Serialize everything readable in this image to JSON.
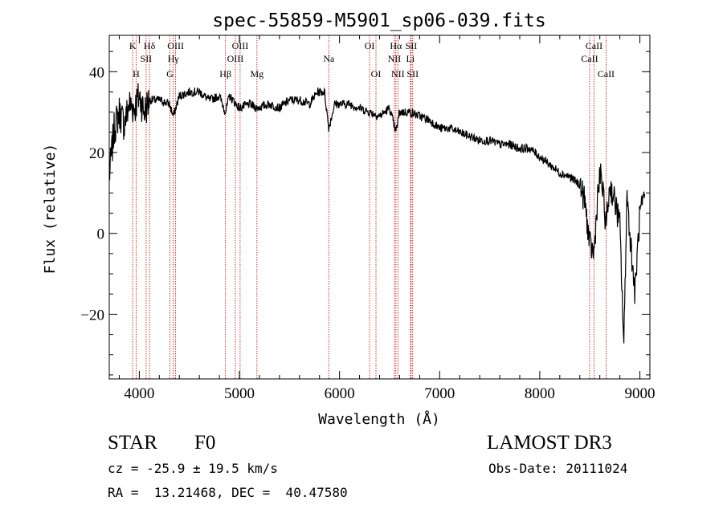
{
  "chart_data": {
    "type": "line",
    "title": "spec-55859-M5901_sp06-039.fits",
    "xlabel": "Wavelength (Å)",
    "ylabel": "Flux (relative)",
    "xlim": [
      3700,
      9100
    ],
    "ylim": [
      -36,
      49
    ],
    "xticks": [
      4000,
      5000,
      6000,
      7000,
      8000,
      9000
    ],
    "yticks": [
      -20,
      0,
      20,
      40
    ],
    "grid": false,
    "series": [
      {
        "name": "spectrum",
        "x": [
          3700,
          3750,
          3800,
          3850,
          3900,
          3950,
          4000,
          4050,
          4100,
          4200,
          4300,
          4340,
          4400,
          4500,
          4600,
          4700,
          4800,
          4861,
          4900,
          5000,
          5100,
          5175,
          5300,
          5400,
          5500,
          5600,
          5700,
          5780,
          5850,
          5893,
          5950,
          6100,
          6200,
          6300,
          6400,
          6500,
          6563,
          6600,
          6700,
          6800,
          6900,
          7000,
          7100,
          7200,
          7300,
          7400,
          7500,
          7600,
          7700,
          7800,
          7900,
          8000,
          8050,
          8100,
          8200,
          8300,
          8400,
          8450,
          8500,
          8542,
          8580,
          8610,
          8662,
          8700,
          8750,
          8800,
          8840,
          8870,
          8900,
          8950,
          9000,
          9050
        ],
        "y": [
          14,
          26,
          30,
          27,
          32,
          31,
          34,
          30,
          33,
          33,
          32,
          29,
          34,
          35,
          35,
          33,
          34,
          30,
          34,
          31,
          32,
          31,
          32,
          31,
          33,
          33,
          32,
          35,
          35,
          26,
          32,
          32,
          31,
          30,
          29,
          31,
          25,
          30,
          30,
          29,
          28,
          26,
          26,
          25,
          24,
          23,
          23,
          22,
          22,
          21,
          21,
          19,
          18,
          17,
          15,
          14,
          12,
          8,
          -3,
          -5,
          10,
          15,
          2,
          12,
          8,
          2,
          -28,
          10,
          0,
          -15,
          5,
          8
        ]
      }
    ],
    "annotation_lines": [
      {
        "label": "Hα",
        "x": 6563,
        "row": 1
      },
      {
        "label": "Hβ",
        "x": 4861,
        "row": 3
      },
      {
        "label": "Hγ",
        "x": 4340,
        "row": 2
      },
      {
        "label": "Hδ",
        "x": 4102,
        "row": 1
      },
      {
        "label": "OIII",
        "x": 5007,
        "row": 1
      },
      {
        "label": "OIII",
        "x": 4959,
        "row": 2
      },
      {
        "label": "OIII",
        "x": 4363,
        "row": 1
      },
      {
        "label": "Mg",
        "x": 5175,
        "row": 3
      },
      {
        "label": "Na",
        "x": 5893,
        "row": 2
      },
      {
        "label": "OI",
        "x": 6300,
        "row": 1
      },
      {
        "label": "OI",
        "x": 6364,
        "row": 3
      },
      {
        "label": "NII",
        "x": 6548,
        "row": 2
      },
      {
        "label": "NII",
        "x": 6583,
        "row": 3
      },
      {
        "label": "SII",
        "x": 6716,
        "row": 1
      },
      {
        "label": "SII",
        "x": 6731,
        "row": 3
      },
      {
        "label": "Li",
        "x": 6708,
        "row": 2
      },
      {
        "label": "G",
        "x": 4305,
        "row": 3
      },
      {
        "label": "SII",
        "x": 4068,
        "row": 2
      },
      {
        "label": "K",
        "x": 3934,
        "row": 1
      },
      {
        "label": "H",
        "x": 3968,
        "row": 3
      },
      {
        "label": "CaII",
        "x": 8662,
        "row": 3
      },
      {
        "label": "CaII",
        "x": 8542,
        "row": 1
      },
      {
        "label": "CaII",
        "x": 8498,
        "row": 2
      }
    ]
  },
  "info": {
    "class_label": "STAR",
    "subclass_label": "F0",
    "survey": "LAMOST DR3",
    "cz": "cz = -25.9 ± 19.5 km/s",
    "obs_date": "Obs-Date: 20111024",
    "coords": "RA =  13.21468, DEC =  40.47580"
  }
}
